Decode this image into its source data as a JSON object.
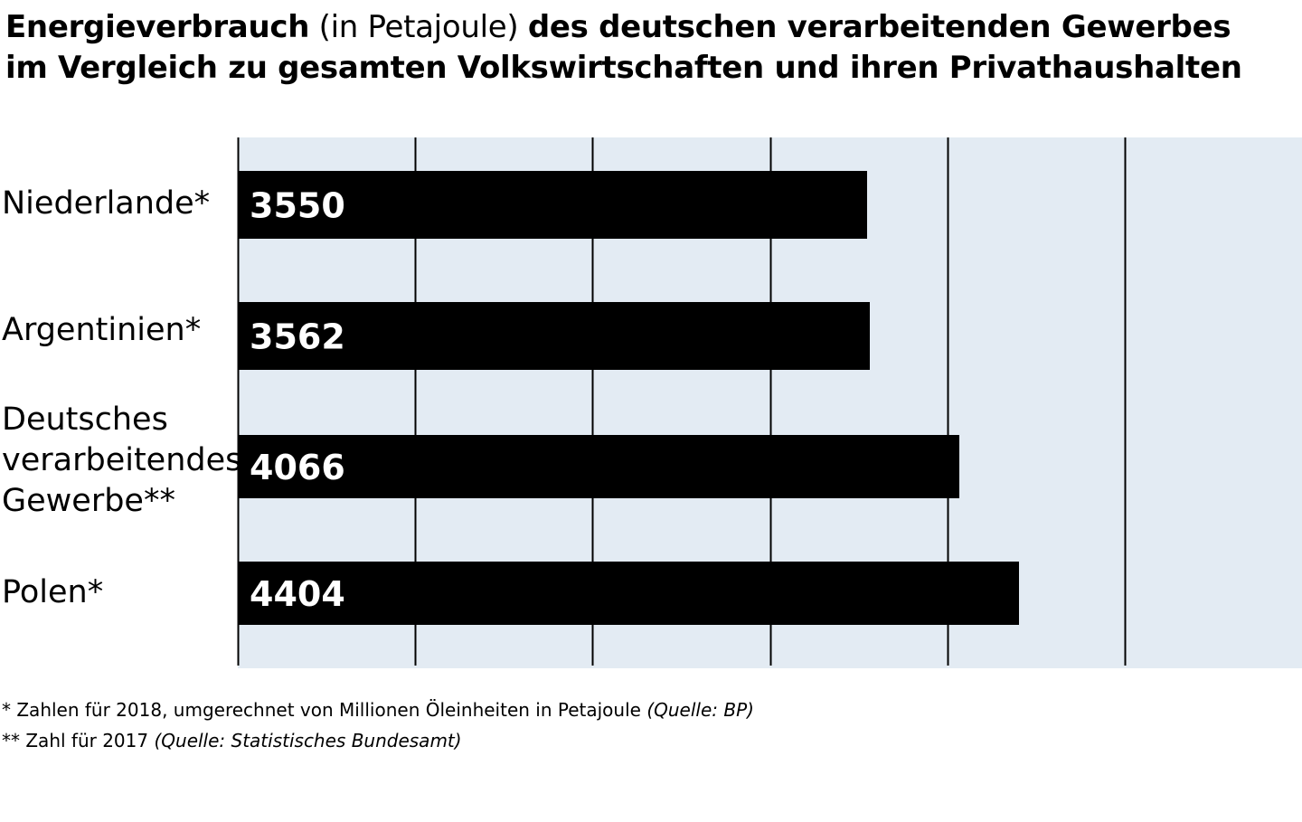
{
  "title": {
    "part1": "Energieverbrauch",
    "part2": " (in Petajoule) ",
    "part3": "des deutschen verarbeitenden Gewerbes",
    "line2": "im Vergleich zu gesamten Volkswirtschaften und ihren Privathaushalten"
  },
  "chart_data": {
    "type": "bar",
    "orientation": "horizontal",
    "categories": [
      [
        "Niederlande*"
      ],
      [
        "Argentinien*"
      ],
      [
        "Deutsches",
        "verarbeitendes",
        "Gewerbe**"
      ],
      [
        "Polen*"
      ]
    ],
    "values": [
      3550,
      3562,
      4066,
      4404
    ],
    "xlim": [
      0,
      6000
    ],
    "grid": true,
    "bar_color": "#000000",
    "plot_background": "#e3ebf3",
    "gridline_color": "#000000"
  },
  "footnotes": [
    {
      "text": "* Zahlen für 2018, umgerechnet von Millionen Öleinheiten in Petajoule ",
      "source": "(Quelle: BP)"
    },
    {
      "text": "** Zahl für 2017 ",
      "source": "(Quelle: Statistisches Bundesamt)"
    }
  ]
}
